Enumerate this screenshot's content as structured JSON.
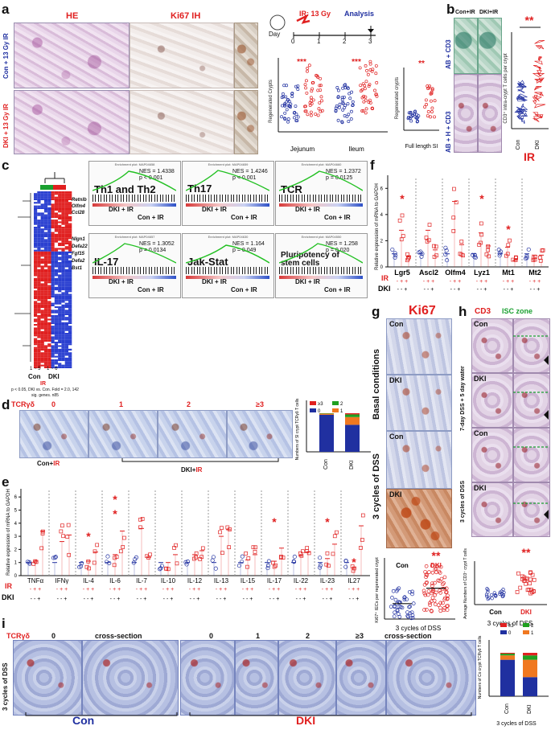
{
  "colors": {
    "red": "#e02020",
    "blue": "#2030a0",
    "green": "#1aa030",
    "dark": "#111111"
  },
  "panels": {
    "a": "a",
    "b": "b",
    "c": "c",
    "d": "d",
    "e": "e",
    "f": "f",
    "g": "g",
    "h": "h",
    "i": "i"
  },
  "panel_a": {
    "he": "HE",
    "ki67ih": "Ki67 IH",
    "row1": "Con + 13 Gy IR",
    "row2": "DKI + 13 Gy IR",
    "ir_dose": "IR: 13 Gy",
    "analysis": "Analysis",
    "day": "Day",
    "days": [
      "0",
      "1",
      "2",
      "3"
    ],
    "ylabel": "Regenerated Crypts",
    "ylabel2": "Regenerated crypts",
    "groups": [
      "Jejunum",
      "Ileum"
    ],
    "xlabel2": "Full length SI",
    "stars": "***",
    "stars2": "**"
  },
  "panel_b": {
    "col1": "Con+IR",
    "col2": "DKI+IR",
    "row1": "AB + CD3",
    "row2": "AB + H + CD3",
    "ylabel": "CD3⁺ intra-crypt T cells per crypt",
    "groups": [
      "Con",
      "DKI"
    ],
    "xlabel": "IR",
    "stars": "**"
  },
  "panel_c": {
    "genes_up": [
      "Retnlb",
      "Olfm4",
      "Ccl28"
    ],
    "genes_down": [
      "Nlgn1",
      "Defa22",
      "Fgf15",
      "Defa2",
      "Bst1"
    ],
    "cols": [
      "Con",
      "DKI"
    ],
    "ranges": [
      "1 ~ 5",
      "1 ~ 6"
    ],
    "ir": "IR",
    "note": "p < 0.05, DKI vs. Con. Fold = 2.0, 142 sig. genes. n85",
    "gsea": [
      {
        "header": "Enrichment plot: MAP04658",
        "name": "Th1 and Th2",
        "nes": "NES = 1.4338",
        "p": "p < 0.001"
      },
      {
        "header": "Enrichment plot: MAP04659",
        "name": "Th17",
        "nes": "NES = 1.4246",
        "p": "p < 0.001"
      },
      {
        "header": "Enrichment plot: MAP04660",
        "name": "TCR",
        "nes": "NES = 1.2372",
        "p": "p = 0.0125"
      },
      {
        "header": "Enrichment plot: MAP04657",
        "name": "IL-17",
        "nes": "NES = 1.3052",
        "p": "p = 0.0134"
      },
      {
        "header": "Enrichment plot: MAP04630",
        "name": "Jak-Stat",
        "nes": "NES = 1.164",
        "p": "p = 0.049"
      },
      {
        "header": "Enrichment plot: MAP04550",
        "name": "Pluripotency of stem cells",
        "nes": "NES = 1.258",
        "p": "p = 0.020"
      }
    ],
    "dki_ir": "DKI + IR",
    "con_ir": "Con + IR"
  },
  "panel_d": {
    "tcr": "TCRγδ",
    "counts": [
      "0",
      "1",
      "2",
      "≥3"
    ],
    "con_ir": "Con+",
    "dki_ir": "DKI+",
    "ir": "IR",
    "ylabel": "Numbers of SI crypt TCRγδ T cells",
    "legend": [
      "≥3",
      "2",
      "0",
      "1"
    ],
    "groups": [
      "Con",
      "DKI"
    ]
  },
  "panel_e": {
    "ylabel": "Relative expression of mRNA to GAPDH",
    "genes": [
      "TNFα",
      "IFNγ",
      "IL-4",
      "IL-6",
      "IL-7",
      "IL-10",
      "IL-12",
      "IL-13",
      "IL-15",
      "IL-17",
      "IL-22",
      "IL-23",
      "IL27"
    ],
    "ir_row": "IR",
    "dki_row": "DKI",
    "ir_signs": "- + +",
    "dki_signs": "- - +",
    "yticks": [
      "0",
      "1",
      "2",
      "3",
      "4",
      "5",
      "6"
    ],
    "star": "*"
  },
  "panel_f": {
    "ylabel": "Relative expression of mRNA to GAPDH",
    "genes": [
      "Lgr5",
      "Ascl2",
      "Olfm4",
      "Lyz1",
      "Mt1",
      "Mt2"
    ],
    "ir_row": "IR",
    "dki_row": "DKI",
    "ir_signs": "- + +",
    "dki_signs": "- - +",
    "yticks": [
      "0",
      "2",
      "4",
      "6"
    ],
    "star": "*"
  },
  "panel_g": {
    "title": "Ki67",
    "basal": "Basal conditions",
    "dss": "3 cycles of DSS",
    "labels": [
      "Con",
      "DKI",
      "Con",
      "DKI"
    ],
    "ylabel": "Ki67⁺ IECs per regenerated crypt",
    "groups": [
      "Con",
      "DKI"
    ],
    "xlabel": "3 cycles of DSS",
    "stars": "**"
  },
  "panel_h": {
    "cd3": "CD3",
    "isc": "ISC zone",
    "row1": "7-day DSS + 5 day water",
    "row2": "3 cycles of DSS",
    "labels": [
      "Con",
      "DKI",
      "Con",
      "DKI"
    ],
    "ylabel": "Average Numbers of CD3⁺ crypt T cells",
    "groups": [
      "Con",
      "DKI"
    ],
    "xlabel": "3 cycles of DSS",
    "stars": "**"
  },
  "panel_i": {
    "tcr": "TCRγδ",
    "counts": [
      "0",
      "cross-section",
      "0",
      "1",
      "2",
      "≥3",
      "cross-section"
    ],
    "side": "3 cycles of DSS",
    "con": "Con",
    "dki": "DKI",
    "ylabel": "Numbers of Co crypt TCRγδ T cells",
    "legend": [
      "≥3",
      "2",
      "0",
      "1"
    ],
    "groups": [
      "Con",
      "DKI"
    ],
    "xlabel": "3 cycles of DSS"
  },
  "chart_data": [
    {
      "type": "scatter",
      "title": "Regenerated Crypts",
      "categories": [
        "Jejunum Con",
        "Jejunum DKI",
        "Ileum Con",
        "Ileum DKI"
      ],
      "ylim": [
        0,
        120
      ]
    },
    {
      "type": "scatter",
      "title": "Regenerated crypts",
      "categories": [
        "Con",
        "DKI"
      ],
      "xlabel": "Full length SI",
      "ylim": [
        0,
        60
      ]
    },
    {
      "type": "scatter",
      "categories": [
        "Con",
        "DKI"
      ],
      "xlabel": "IR",
      "ylim": [
        0,
        16
      ]
    },
    {
      "type": "bar",
      "categories": [
        "Con",
        "DKI"
      ],
      "ylim": [
        0,
        100
      ],
      "series": [
        {
          "name": "0",
          "values": [
            96,
            70
          ]
        },
        {
          "name": "1",
          "values": [
            3,
            20
          ]
        },
        {
          "name": "2",
          "values": [
            1,
            7
          ]
        },
        {
          "name": "≥3",
          "values": [
            0,
            3
          ]
        }
      ]
    },
    {
      "type": "bar",
      "categories": [
        "TNFα",
        "IFNγ",
        "IL-4",
        "IL-6",
        "IL-7",
        "IL-10",
        "IL-12",
        "IL-13",
        "IL-15",
        "IL-17",
        "IL-22",
        "IL-23",
        "IL27"
      ],
      "series": [
        {
          "name": "Con",
          "values": [
            1.0,
            1.0,
            1.0,
            1.0,
            1.0,
            1.0,
            1.0,
            1.0,
            1.0,
            1.0,
            1.0,
            1.0,
            1.0
          ]
        },
        {
          "name": "Con+IR",
          "values": [
            1.1,
            2.6,
            1.1,
            1.6,
            3.6,
            1.0,
            1.6,
            3.0,
            1.2,
            1.1,
            1.5,
            1.3,
            0.6
          ]
        },
        {
          "name": "DKI+IR",
          "values": [
            3.4,
            3.1,
            1.8,
            3.4,
            1.4,
            1.6,
            1.9,
            3.5,
            1.6,
            2.1,
            1.8,
            2.4,
            3.8
          ]
        }
      ],
      "ylim": [
        0,
        6
      ]
    },
    {
      "type": "bar",
      "categories": [
        "Lgr5",
        "Ascl2",
        "Olfm4",
        "Lyz1",
        "Mt1",
        "Mt2"
      ],
      "series": [
        {
          "name": "Con",
          "values": [
            1.0,
            1.0,
            1.0,
            1.0,
            1.0,
            1.0
          ]
        },
        {
          "name": "Con+IR",
          "values": [
            2.8,
            2.8,
            5.0,
            2.6,
            1.5,
            0.9
          ]
        },
        {
          "name": "DKI+IR",
          "values": [
            0.8,
            1.3,
            1.7,
            1.6,
            0.5,
            0.9
          ]
        }
      ],
      "ylim": [
        0,
        7
      ]
    },
    {
      "type": "scatter",
      "categories": [
        "Con",
        "DKI"
      ],
      "xlabel": "3 cycles of DSS",
      "ylim": [
        0,
        15
      ]
    },
    {
      "type": "scatter",
      "categories": [
        "Con",
        "DKI"
      ],
      "xlabel": "3 cycles of DSS",
      "ylim": [
        0,
        8
      ]
    },
    {
      "type": "bar",
      "categories": [
        "Con",
        "DKI"
      ],
      "ylim": [
        0,
        100
      ],
      "series": [
        {
          "name": "0",
          "values": [
            84,
            44
          ]
        },
        {
          "name": "1",
          "values": [
            10,
            40
          ]
        },
        {
          "name": "2",
          "values": [
            4,
            10
          ]
        },
        {
          "name": "≥3",
          "values": [
            2,
            6
          ]
        }
      ]
    }
  ]
}
